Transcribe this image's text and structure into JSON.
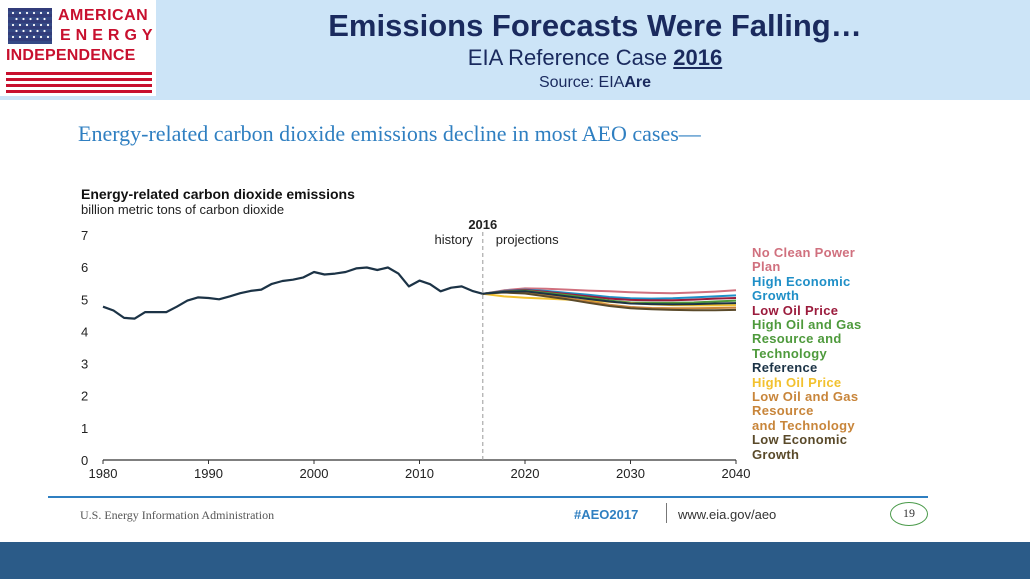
{
  "header": {
    "title": "Emissions Forecasts Were Falling…",
    "subtitle_prefix": "EIA Reference Case ",
    "subtitle_year": "2016",
    "source_prefix": "Source: EIA",
    "source_suffix": "Are"
  },
  "logo": {
    "line1": "AMERICAN",
    "line2": "ENERGY",
    "line3": "INDEPENDENCE",
    "flag_icon": "us-flag-icon"
  },
  "slide": {
    "title": "Energy-related carbon dioxide emissions decline in most AEO cases—"
  },
  "footer": {
    "org": "U.S. Energy Information Administration",
    "hashtag": "#AEO2017",
    "url": "www.eia.gov/aeo",
    "page": "19"
  },
  "colors": {
    "header_bg": "#cce4f7",
    "title_text": "#1a2a5e",
    "accent_blue": "#2f7fc1",
    "bottom_bar": "#2b5b88",
    "logo_red": "#c8102e"
  },
  "chart_data": {
    "type": "line",
    "title": "Energy-related carbon dioxide emissions",
    "ylabel": "billion metric tons of carbon dioxide",
    "xlim": [
      1980,
      2040
    ],
    "ylim": [
      0,
      7
    ],
    "xticks": [
      "1980",
      "1990",
      "2000",
      "2010",
      "2020",
      "2030",
      "2040"
    ],
    "yticks": [
      "0",
      "1",
      "2",
      "3",
      "4",
      "5",
      "6",
      "7"
    ],
    "divider": {
      "year": 2016,
      "label": "2016",
      "left_label": "history",
      "right_label": "projections"
    },
    "history": {
      "color": "#1c3346",
      "x": [
        1980,
        1981,
        1982,
        1983,
        1984,
        1985,
        1986,
        1987,
        1988,
        1989,
        1990,
        1991,
        1992,
        1993,
        1994,
        1995,
        1996,
        1997,
        1998,
        1999,
        2000,
        2001,
        2002,
        2003,
        2004,
        2005,
        2006,
        2007,
        2008,
        2009,
        2010,
        2011,
        2012,
        2013,
        2014,
        2015,
        2016
      ],
      "y": [
        4.77,
        4.65,
        4.42,
        4.4,
        4.6,
        4.6,
        4.6,
        4.77,
        4.96,
        5.06,
        5.04,
        5.0,
        5.09,
        5.19,
        5.26,
        5.3,
        5.48,
        5.57,
        5.61,
        5.68,
        5.85,
        5.77,
        5.8,
        5.85,
        5.96,
        5.99,
        5.91,
        5.99,
        5.8,
        5.4,
        5.58,
        5.47,
        5.25,
        5.36,
        5.4,
        5.26,
        5.17
      ]
    },
    "projection_x": [
      2016,
      2018,
      2020,
      2022,
      2024,
      2026,
      2028,
      2030,
      2032,
      2034,
      2036,
      2038,
      2040
    ],
    "series": [
      {
        "name": "No Clean Power Plan",
        "color": "#d0707e",
        "values": [
          5.17,
          5.28,
          5.34,
          5.33,
          5.3,
          5.27,
          5.25,
          5.22,
          5.2,
          5.19,
          5.21,
          5.24,
          5.28
        ]
      },
      {
        "name": "High Economic Growth",
        "color": "#1f8fc7",
        "values": [
          5.17,
          5.26,
          5.3,
          5.26,
          5.2,
          5.14,
          5.07,
          5.03,
          5.02,
          5.03,
          5.06,
          5.09,
          5.12
        ]
      },
      {
        "name": "Low Oil Price",
        "color": "#9b1b3c",
        "values": [
          5.17,
          5.25,
          5.29,
          5.23,
          5.16,
          5.09,
          5.02,
          4.98,
          4.97,
          4.97,
          4.99,
          5.02,
          5.04
        ]
      },
      {
        "name": "High Oil and Gas Resource and Technology",
        "color": "#4e9a3c",
        "values": [
          5.17,
          5.24,
          5.27,
          5.2,
          5.13,
          5.05,
          4.96,
          4.9,
          4.89,
          4.89,
          4.9,
          4.93,
          4.96
        ]
      },
      {
        "name": "Reference",
        "color": "#1c3346",
        "values": [
          5.17,
          5.23,
          5.25,
          5.17,
          5.09,
          5.01,
          4.93,
          4.87,
          4.85,
          4.84,
          4.85,
          4.87,
          4.88
        ]
      },
      {
        "name": "High Oil Price",
        "color": "#f2c12e",
        "values": [
          5.17,
          5.09,
          5.05,
          5.02,
          4.99,
          4.96,
          4.92,
          4.88,
          4.84,
          4.82,
          4.81,
          4.81,
          4.82
        ]
      },
      {
        "name": "Low Oil and Gas Resource and Technology",
        "color": "#c8853a",
        "values": [
          5.17,
          5.22,
          5.21,
          5.12,
          5.03,
          4.93,
          4.83,
          4.76,
          4.73,
          4.72,
          4.72,
          4.73,
          4.74
        ]
      },
      {
        "name": "Low Economic Growth",
        "color": "#5a4a2a",
        "values": [
          5.17,
          5.21,
          5.18,
          5.09,
          5.0,
          4.89,
          4.79,
          4.72,
          4.69,
          4.67,
          4.66,
          4.66,
          4.67
        ]
      }
    ],
    "legend": {
      "placement": "right",
      "lines": [
        {
          "text": "No Clean Power",
          "color": "#d0707e"
        },
        {
          "text": "Plan",
          "color": "#d0707e"
        },
        {
          "text": "High Economic",
          "color": "#1f8fc7"
        },
        {
          "text": "Growth",
          "color": "#1f8fc7"
        },
        {
          "text": "Low Oil Price",
          "color": "#9b1b3c"
        },
        {
          "text": "High Oil and Gas",
          "color": "#4e9a3c"
        },
        {
          "text": "Resource and",
          "color": "#4e9a3c"
        },
        {
          "text": "Technology",
          "color": "#4e9a3c"
        },
        {
          "text": "Reference",
          "color": "#1c3346"
        },
        {
          "text": "High Oil Price",
          "color": "#f2c12e"
        },
        {
          "text": "Low Oil and Gas",
          "color": "#c8853a"
        },
        {
          "text": "Resource",
          "color": "#c8853a"
        },
        {
          "text": "and Technology",
          "color": "#c8853a"
        },
        {
          "text": "Low Economic",
          "color": "#5a4a2a"
        },
        {
          "text": "Growth",
          "color": "#5a4a2a"
        }
      ]
    },
    "grid": false
  }
}
